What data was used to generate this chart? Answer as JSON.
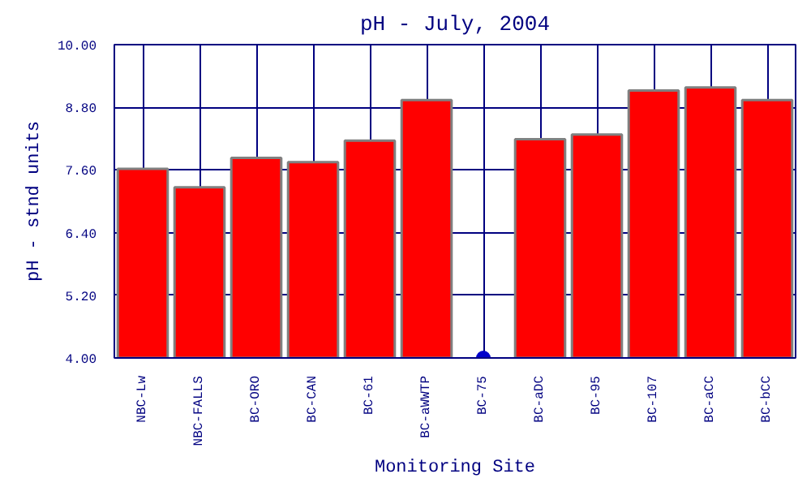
{
  "chart_data": {
    "type": "bar",
    "title": "pH - July, 2004",
    "xlabel": "Monitoring Site",
    "ylabel": "pH - stnd units",
    "categories": [
      "NBC-Lw",
      "NBC-FALLS",
      "BC-ORO",
      "BC-CAN",
      "BC-61",
      "BC-aWWTP",
      "BC-75",
      "BC-aDC",
      "BC-95",
      "BC-107",
      "BC-aCC",
      "BC-bCC"
    ],
    "series": [
      {
        "color": "#ff0000",
        "values": [
          7.62,
          7.27,
          7.83,
          7.75,
          8.16,
          8.94,
          null,
          8.19,
          8.28,
          9.12,
          9.18,
          8.94
        ]
      },
      {
        "type": "scatter",
        "color": "#0000cc",
        "x": [
          "BC-75"
        ],
        "values": [
          4.0
        ]
      }
    ],
    "ylim": [
      4.0,
      10.0
    ],
    "yticks": [
      {
        "value": 4.0,
        "label": "4.00"
      },
      {
        "value": 5.2,
        "label": "5.20"
      },
      {
        "value": 6.4,
        "label": "6.40"
      },
      {
        "value": 7.6,
        "label": "7.60"
      },
      {
        "value": 8.8,
        "label": "8.80"
      },
      {
        "value": 10.0,
        "label": "10.00"
      }
    ],
    "grid": true,
    "marker": "circle"
  }
}
